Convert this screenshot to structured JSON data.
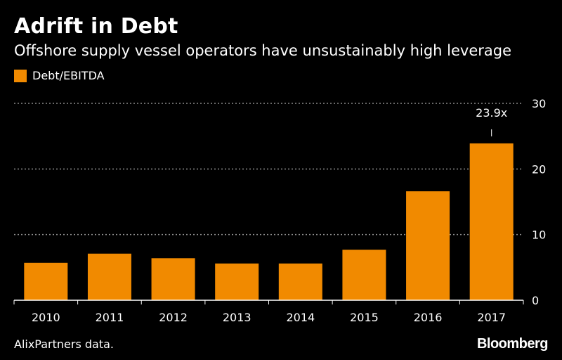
{
  "header": {
    "title": "Adrift in Debt",
    "subtitle": "Offshore supply vessel operators have unsustainably high leverage"
  },
  "legend": {
    "label": "Debt/EBITDA"
  },
  "footer": {
    "source": "AlixPartners data.",
    "brand": "Bloomberg"
  },
  "colors": {
    "bar": "#f18a00",
    "grid": "#8a8a8a",
    "axis": "#ffffff",
    "text": "#ffffff",
    "background": "#000000"
  },
  "chart_data": {
    "type": "bar",
    "categories": [
      "2010",
      "2011",
      "2012",
      "2013",
      "2014",
      "2015",
      "2016",
      "2017"
    ],
    "series": [
      {
        "name": "Debt/EBITDA",
        "values": [
          5.7,
          7.1,
          6.4,
          5.6,
          5.6,
          7.7,
          16.6,
          23.9
        ]
      }
    ],
    "ylim": [
      0,
      30
    ],
    "yticks": [
      0,
      10,
      20,
      30
    ],
    "y_axis_side": "right",
    "grid": true,
    "legend_position": "top-left",
    "annotations": [
      {
        "category": "2017",
        "text": "23.9x"
      }
    ]
  }
}
